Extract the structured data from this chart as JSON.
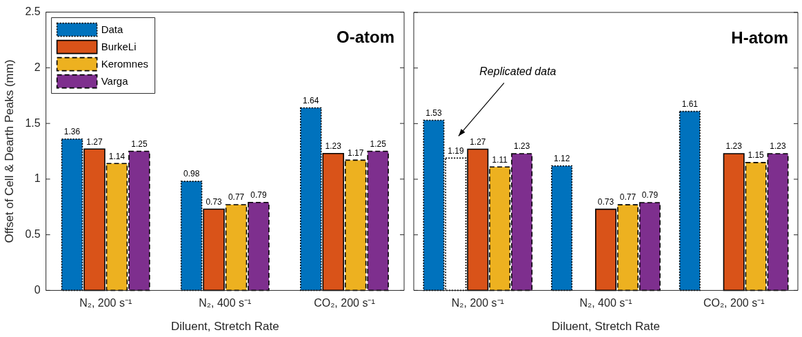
{
  "chart_data": [
    {
      "type": "bar",
      "title": "O-atom",
      "xlabel": "Diluent, Stretch Rate",
      "ylabel": "Offset of Cell & Dearth Peaks (mm)",
      "categories": [
        "N₂, 200 s⁻¹",
        "N₂, 400 s⁻¹",
        "CO₂, 200 s⁻¹"
      ],
      "series": [
        {
          "name": "Data",
          "color": "#0072bd",
          "line_style": "dotted",
          "values": [
            1.36,
            0.98,
            1.64
          ]
        },
        {
          "name": "BurkeLi",
          "color": "#d95319",
          "line_style": "solid",
          "values": [
            1.27,
            0.73,
            1.23
          ]
        },
        {
          "name": "Keromnes",
          "color": "#edb120",
          "line_style": "dashed",
          "values": [
            1.14,
            0.77,
            1.17
          ]
        },
        {
          "name": "Varga",
          "color": "#7e2f8e",
          "line_style": "dashed",
          "values": [
            1.25,
            0.79,
            1.25
          ]
        }
      ],
      "ylim": [
        0,
        2.5
      ],
      "yticks": [
        0,
        0.5,
        1,
        1.5,
        2,
        2.5
      ],
      "grid": false,
      "legend": "top left",
      "data_labels": true
    },
    {
      "type": "bar",
      "title": "H-atom",
      "xlabel": "Diluent, Stretch Rate",
      "categories": [
        "N₂, 200 s⁻¹",
        "N₂, 400 s⁻¹",
        "CO₂, 200 s⁻¹"
      ],
      "series": [
        {
          "color": "#0072bd",
          "line_style": "dotted",
          "values": [
            1.53,
            1.12,
            1.61
          ]
        },
        {
          "color": "#ffffff",
          "line_style": "dotted",
          "values": [
            1.19,
            null,
            null
          ]
        },
        {
          "color": "#d95319",
          "line_style": "solid",
          "values": [
            1.27,
            0.73,
            1.23
          ]
        },
        {
          "color": "#edb120",
          "line_style": "dashed",
          "values": [
            1.11,
            0.77,
            1.15
          ]
        },
        {
          "color": "#7e2f8e",
          "line_style": "dashed",
          "values": [
            1.23,
            0.79,
            1.23
          ]
        }
      ],
      "ylim": [
        0,
        2.5
      ],
      "yticks": [
        0,
        0.5,
        1,
        1.5,
        2,
        2.5
      ],
      "grid": false,
      "legend": false,
      "data_labels": true,
      "tick_labels": "x",
      "annotations": [
        "Replicated data"
      ]
    }
  ]
}
